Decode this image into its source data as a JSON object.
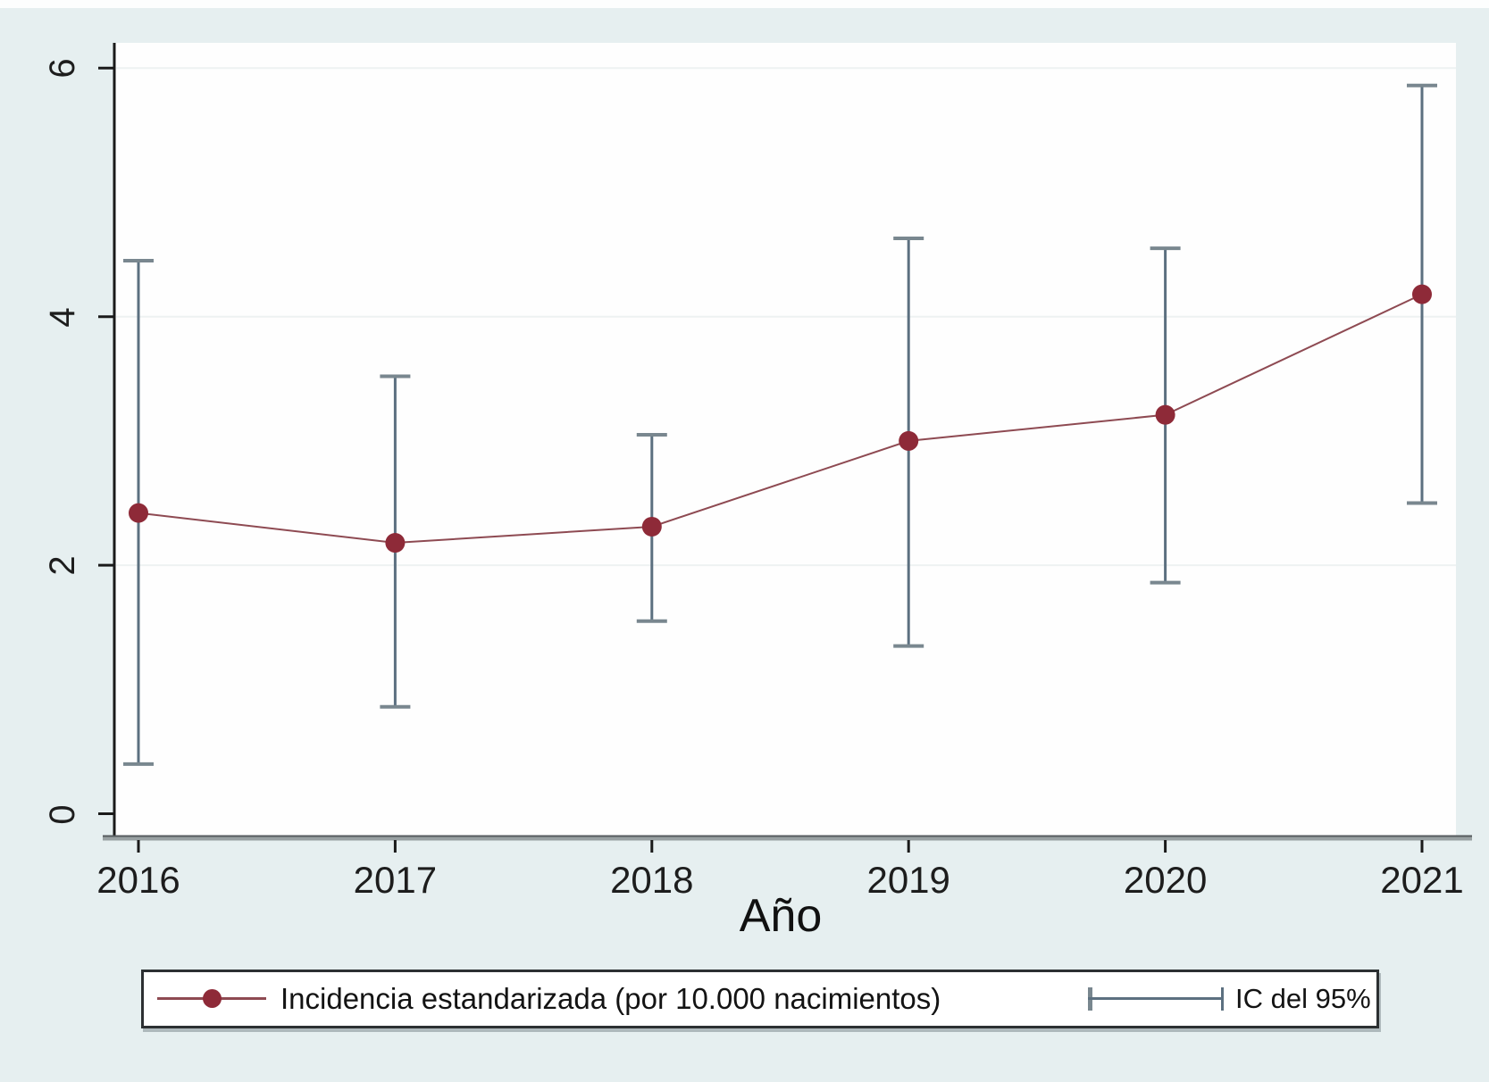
{
  "chart_data": {
    "type": "line",
    "title": "",
    "xlabel": "Año",
    "ylabel": "",
    "x": [
      2016,
      2017,
      2018,
      2019,
      2020,
      2021
    ],
    "xtick_labels": [
      "2016",
      "2017",
      "2018",
      "2019",
      "2020",
      "2021"
    ],
    "yticks": [
      0,
      2,
      4,
      6
    ],
    "ytick_labels": [
      "0",
      "2",
      "4",
      "6"
    ],
    "ylim": [
      0,
      6.2
    ],
    "grid": "faint horizontal gridlines at y ticks",
    "legend_position": "bottom",
    "series": [
      {
        "name": "Incidencia estandarizada (por 10.000 nacimientos)",
        "values": [
          2.42,
          2.18,
          2.31,
          3.0,
          3.21,
          4.18
        ],
        "ci_lower": [
          0.4,
          0.86,
          1.55,
          1.35,
          1.86,
          2.5
        ],
        "ci_upper": [
          4.45,
          3.52,
          3.05,
          4.63,
          4.55,
          5.86
        ]
      }
    ],
    "legend": {
      "series_label": "Incidencia estandarizada (por 10.000 nacimientos)",
      "ci_label": "IC del 95%"
    },
    "colors": {
      "page_background": "#e6eff0",
      "plot_background": "#fefefe",
      "marker": "#8e2a38",
      "trend_line": "#8e4a52",
      "error_bar": "#5c7080",
      "error_bar_cap": "#79878f",
      "axis": "#1a1a1a",
      "x_axis_shadow": "#98a0a2",
      "gridline": "#eef2f2"
    }
  }
}
